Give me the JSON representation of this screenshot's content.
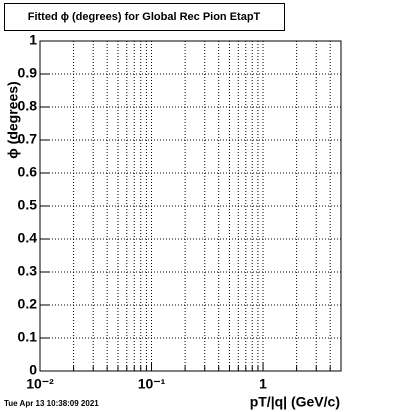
{
  "chart_data": {
    "type": "line",
    "title": "Fitted ϕ (degrees) for Global Rec Pion EtapT",
    "x_label": "pT/|q| (GeV/c)",
    "y_label": "ϕ (degrees)",
    "timestamp": "Tue Apr 13 10:38:09 2021",
    "series": [],
    "x_log": true,
    "xlim": [
      0.01,
      5
    ],
    "xticks": [
      {
        "value": 0.01,
        "label": "10⁻²"
      },
      {
        "value": 0.1,
        "label": "10⁻¹"
      },
      1
    ],
    "xminorticks": [
      0.02,
      0.03,
      0.04,
      0.05,
      0.06,
      0.07,
      0.08,
      0.09,
      0.2,
      0.3,
      0.4,
      0.5,
      0.6,
      0.7,
      0.8,
      0.9,
      2,
      3,
      4
    ],
    "ylim": [
      0,
      1
    ],
    "yticks": [
      0,
      0.1,
      0.2,
      0.3,
      0.4,
      0.5,
      0.6,
      0.7,
      0.8,
      0.9,
      1
    ],
    "grid": true
  }
}
